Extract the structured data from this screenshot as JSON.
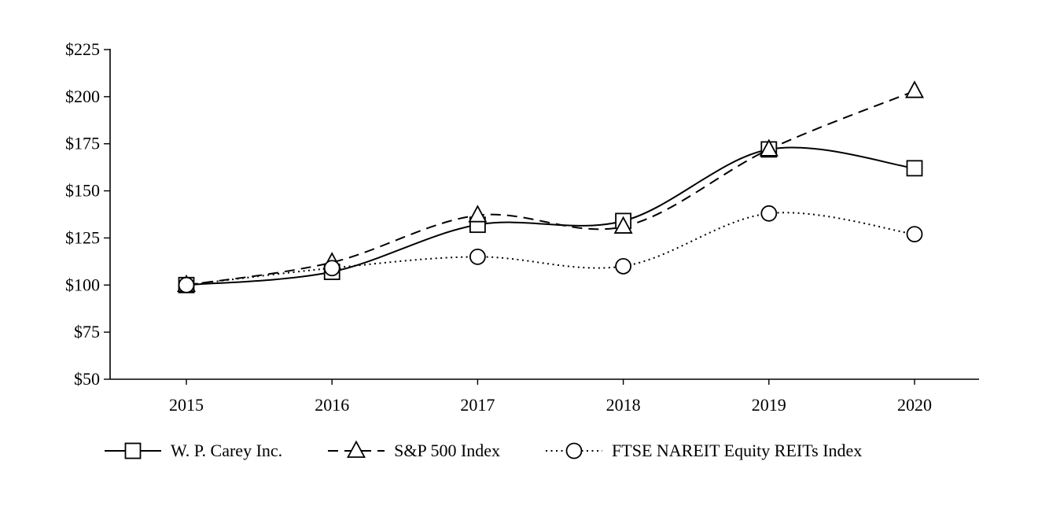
{
  "chart_data": {
    "type": "line",
    "title": "",
    "xlabel": "",
    "ylabel": "",
    "x": [
      2015,
      2016,
      2017,
      2018,
      2019,
      2020
    ],
    "x_tick_labels": [
      "2015",
      "2016",
      "2017",
      "2018",
      "2019",
      "2020"
    ],
    "y_ticks": [
      50,
      75,
      100,
      125,
      150,
      175,
      200,
      225
    ],
    "y_tick_labels": [
      "$50",
      "$75",
      "$100",
      "$125",
      "$150",
      "$175",
      "$200",
      "$225"
    ],
    "ylim": [
      50,
      225
    ],
    "grid": false,
    "legend_position": "bottom",
    "color": "#000000",
    "background": "#ffffff",
    "series": [
      {
        "name": "W. P. Carey Inc.",
        "marker": "square",
        "line_style": "solid",
        "values": [
          100,
          107,
          132,
          134,
          172,
          162
        ]
      },
      {
        "name": "S&P 500 Index",
        "marker": "triangle",
        "line_style": "dashed",
        "values": [
          100,
          112,
          137,
          131,
          172,
          203
        ]
      },
      {
        "name": "FTSE NAREIT Equity REITs Index",
        "marker": "circle",
        "line_style": "dotted",
        "values": [
          100,
          109,
          115,
          110,
          138,
          127
        ]
      }
    ]
  }
}
